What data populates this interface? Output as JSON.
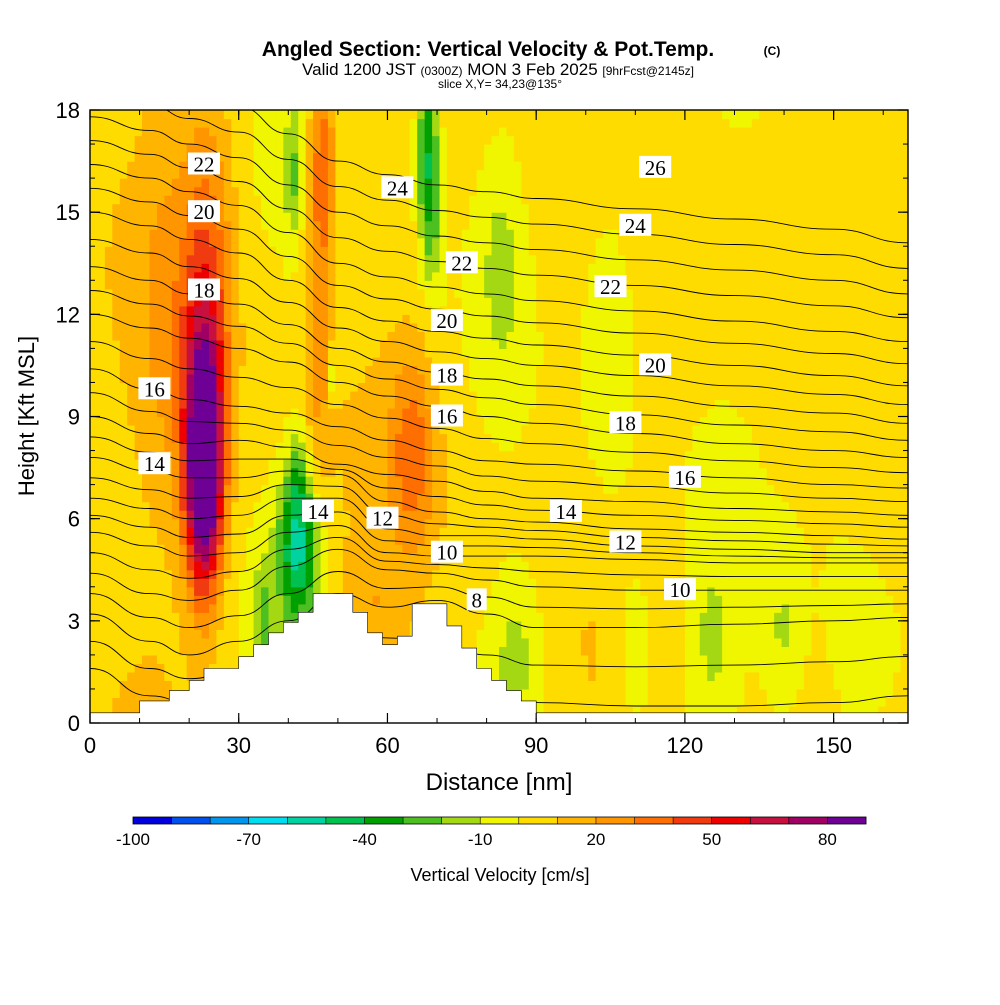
{
  "chart_data": {
    "type": "heatmap",
    "title": "Angled Section: Vertical Velocity & Pot.Temp.",
    "title_unit": "(C)",
    "subtitle_main_a": "Valid 1200 JST",
    "subtitle_small_a": "(0300Z)",
    "subtitle_main_b": "MON 3 Feb 2025",
    "subtitle_small_b": "[9hrFcst@2145z]",
    "slice_label": "slice X,Y= 34,23@135°",
    "xlabel": "Distance [nm]",
    "ylabel": "Height [Kft MSL]",
    "xlim": [
      0,
      165
    ],
    "ylim": [
      0,
      18
    ],
    "xticks": [
      0,
      30,
      60,
      90,
      120,
      150
    ],
    "yticks": [
      0,
      3,
      6,
      9,
      12,
      15,
      18
    ],
    "colorbar": {
      "label": "Vertical Velocity [cm/s]",
      "tick_labels": [
        "-100",
        "-70",
        "-40",
        "-10",
        "20",
        "50",
        "80"
      ],
      "tick_values": [
        -100,
        -70,
        -40,
        -10,
        20,
        50,
        80
      ],
      "range": [
        -100,
        90
      ],
      "colors": [
        "#0000dd",
        "#0050ee",
        "#0096ee",
        "#00dcf0",
        "#00d2a0",
        "#00c050",
        "#00a000",
        "#4cc020",
        "#a4d812",
        "#f0f500",
        "#ffdc00",
        "#ffb400",
        "#ff9600",
        "#ff6e00",
        "#f03a10",
        "#ee0000",
        "#c81040",
        "#a00064",
        "#6e0096"
      ]
    },
    "theta_labels": [
      {
        "text": "22",
        "x": 23,
        "y": 16.4
      },
      {
        "text": "20",
        "x": 23,
        "y": 15.0
      },
      {
        "text": "18",
        "x": 23,
        "y": 12.7
      },
      {
        "text": "16",
        "x": 13,
        "y": 9.8
      },
      {
        "text": "14",
        "x": 13,
        "y": 7.6
      },
      {
        "text": "24",
        "x": 62,
        "y": 15.7
      },
      {
        "text": "22",
        "x": 75,
        "y": 13.5
      },
      {
        "text": "20",
        "x": 72,
        "y": 11.8
      },
      {
        "text": "18",
        "x": 72,
        "y": 10.2
      },
      {
        "text": "16",
        "x": 72,
        "y": 9.0
      },
      {
        "text": "14",
        "x": 46,
        "y": 6.2
      },
      {
        "text": "12",
        "x": 59,
        "y": 6.0
      },
      {
        "text": "10",
        "x": 72,
        "y": 5.0
      },
      {
        "text": "8",
        "x": 78,
        "y": 3.6
      },
      {
        "text": "26",
        "x": 114,
        "y": 16.3
      },
      {
        "text": "24",
        "x": 110,
        "y": 14.6
      },
      {
        "text": "22",
        "x": 105,
        "y": 12.8
      },
      {
        "text": "20",
        "x": 114,
        "y": 10.5
      },
      {
        "text": "18",
        "x": 108,
        "y": 8.8
      },
      {
        "text": "16",
        "x": 120,
        "y": 7.2
      },
      {
        "text": "14",
        "x": 96,
        "y": 6.2
      },
      {
        "text": "12",
        "x": 108,
        "y": 5.3
      },
      {
        "text": "10",
        "x": 119,
        "y": 3.9
      }
    ],
    "theta_profile": [
      {
        "level": 2,
        "x": [
          0,
          12,
          20,
          30,
          40,
          50,
          60,
          70,
          80,
          90,
          110,
          130,
          150,
          165
        ],
        "y": [
          1.6,
          0.8,
          0.6,
          0.7,
          1.2,
          1.5,
          1.6,
          1.2,
          0.8,
          0.6,
          0.5,
          0.5,
          0.6,
          0.8
        ]
      },
      {
        "level": 4,
        "x": [
          0,
          12,
          20,
          30,
          40,
          50,
          60,
          70,
          80,
          90,
          110,
          130,
          150,
          165
        ],
        "y": [
          3.2,
          2.4,
          2.0,
          2.4,
          3.0,
          3.8,
          3.4,
          3.6,
          3.2,
          2.8,
          2.8,
          2.9,
          3.0,
          3.1
        ]
      },
      {
        "level": 6,
        "x": [
          0,
          12,
          20,
          30,
          40,
          50,
          60,
          70,
          80,
          90,
          110,
          130,
          150,
          165
        ],
        "y": [
          4.4,
          3.8,
          3.6,
          3.9,
          4.6,
          5.1,
          4.5,
          4.4,
          4.2,
          4.0,
          3.9,
          3.9,
          3.9,
          3.9
        ]
      },
      {
        "level": 8,
        "x": [
          0,
          12,
          20,
          30,
          40,
          50,
          60,
          70,
          80,
          90,
          110,
          130,
          150,
          165
        ],
        "y": [
          5.6,
          5.2,
          4.9,
          5.0,
          5.6,
          5.8,
          5.0,
          4.9,
          4.9,
          4.9,
          4.8,
          4.7,
          4.7,
          4.7
        ]
      },
      {
        "level": 10,
        "x": [
          0,
          12,
          20,
          30,
          40,
          50,
          60,
          70,
          80,
          90,
          110,
          130,
          150,
          165
        ],
        "y": [
          6.6,
          6.3,
          6.0,
          6.1,
          6.6,
          6.6,
          5.7,
          5.5,
          5.5,
          5.4,
          5.2,
          5.1,
          5.0,
          5.0
        ]
      },
      {
        "level": 12,
        "x": [
          0,
          12,
          20,
          30,
          40,
          50,
          60,
          70,
          80,
          90,
          110,
          130,
          150,
          165
        ],
        "y": [
          7.8,
          7.4,
          7.2,
          7.2,
          7.4,
          7.3,
          6.5,
          6.2,
          6.0,
          5.9,
          5.7,
          5.6,
          5.5,
          5.4
        ]
      },
      {
        "level": 14,
        "x": [
          0,
          12,
          20,
          30,
          40,
          50,
          60,
          70,
          80,
          90,
          110,
          130,
          150,
          165
        ],
        "y": [
          9.0,
          8.5,
          8.2,
          8.3,
          8.1,
          7.6,
          7.3,
          7.1,
          6.8,
          6.6,
          6.5,
          6.3,
          6.2,
          6.1
        ]
      },
      {
        "level": 16,
        "x": [
          0,
          12,
          20,
          30,
          40,
          50,
          60,
          70,
          80,
          90,
          110,
          130,
          150,
          165
        ],
        "y": [
          10.4,
          9.8,
          9.5,
          9.3,
          9.1,
          8.7,
          8.3,
          8.0,
          7.7,
          7.6,
          7.4,
          7.2,
          7.0,
          6.9
        ]
      },
      {
        "level": 18,
        "x": [
          0,
          12,
          20,
          30,
          40,
          50,
          60,
          70,
          80,
          90,
          110,
          130,
          150,
          165
        ],
        "y": [
          12.0,
          11.6,
          11.3,
          11.0,
          10.6,
          10.0,
          9.6,
          9.3,
          9.0,
          8.8,
          8.5,
          8.2,
          8.0,
          7.8
        ]
      },
      {
        "level": 20,
        "x": [
          0,
          12,
          20,
          30,
          40,
          50,
          60,
          70,
          80,
          90,
          110,
          130,
          150,
          165
        ],
        "y": [
          13.4,
          13.0,
          12.6,
          12.3,
          11.7,
          11.0,
          10.6,
          10.3,
          10.1,
          9.9,
          9.6,
          9.3,
          9.1,
          8.8
        ]
      },
      {
        "level": 22,
        "x": [
          0,
          12,
          20,
          30,
          40,
          50,
          60,
          70,
          80,
          90,
          110,
          130,
          150,
          165
        ],
        "y": [
          15.0,
          14.6,
          14.2,
          13.8,
          13.0,
          12.2,
          11.8,
          11.5,
          11.3,
          11.1,
          10.8,
          10.5,
          10.2,
          9.9
        ]
      },
      {
        "level": 24,
        "x": [
          0,
          12,
          20,
          30,
          40,
          50,
          60,
          70,
          80,
          90,
          110,
          130,
          150,
          165
        ],
        "y": [
          16.4,
          16.0,
          15.6,
          15.2,
          14.4,
          13.5,
          13.1,
          12.8,
          12.6,
          12.4,
          12.1,
          11.8,
          11.5,
          11.2
        ]
      },
      {
        "level": 26,
        "x": [
          0,
          12,
          20,
          30,
          40,
          50,
          60,
          70,
          80,
          90,
          110,
          130,
          150,
          165
        ],
        "y": [
          17.8,
          17.4,
          17.0,
          16.6,
          15.8,
          15.0,
          14.6,
          14.3,
          14.1,
          13.9,
          13.6,
          13.3,
          13.0,
          12.6
        ]
      }
    ],
    "terrain": {
      "x": [
        0,
        10,
        10,
        16,
        16,
        20,
        20,
        23,
        23,
        30,
        30,
        33,
        33,
        36,
        36,
        39,
        39,
        42,
        42,
        45,
        45,
        53,
        53,
        56,
        56,
        59,
        59,
        62,
        62,
        65,
        65,
        72,
        72,
        75,
        75,
        78,
        78,
        81,
        81,
        84,
        84,
        87,
        87,
        90,
        90,
        165
      ],
      "y": [
        0.3,
        0.3,
        0.65,
        0.65,
        0.95,
        0.95,
        1.25,
        1.25,
        1.6,
        1.6,
        1.95,
        1.95,
        2.3,
        2.3,
        2.65,
        2.65,
        2.95,
        2.95,
        3.25,
        3.25,
        3.8,
        3.8,
        3.25,
        3.25,
        2.65,
        2.65,
        2.3,
        2.3,
        2.55,
        2.55,
        3.5,
        3.5,
        2.85,
        2.85,
        2.2,
        2.2,
        1.6,
        1.6,
        1.25,
        1.25,
        0.95,
        0.95,
        0.65,
        0.65,
        0.3,
        0.3
      ]
    },
    "velocity_features": [
      {
        "x": 23,
        "y": 7.2,
        "sx": 2.6,
        "sy": 2.4,
        "v": 95
      },
      {
        "x": 23,
        "y": 10.0,
        "sx": 3.2,
        "sy": 3.0,
        "v": 35
      },
      {
        "x": 24,
        "y": 14.5,
        "sx": 4.0,
        "sy": 3.8,
        "v": 22
      },
      {
        "x": 15,
        "y": 12.0,
        "sx": 4.0,
        "sy": 4.5,
        "v": 12
      },
      {
        "x": 47,
        "y": 16.5,
        "sx": 1.6,
        "sy": 2.0,
        "v": 28
      },
      {
        "x": 46,
        "y": 12.0,
        "sx": 2.0,
        "sy": 3.5,
        "v": 20
      },
      {
        "x": 41,
        "y": 16.2,
        "sx": 1.3,
        "sy": 1.5,
        "v": -22
      },
      {
        "x": 42,
        "y": 5.0,
        "sx": 3.0,
        "sy": 1.6,
        "v": -52
      },
      {
        "x": 42,
        "y": 7.2,
        "sx": 1.5,
        "sy": 1.2,
        "v": -22
      },
      {
        "x": 35,
        "y": 3.0,
        "sx": 1.5,
        "sy": 1.2,
        "v": -22
      },
      {
        "x": 49,
        "y": 10.2,
        "sx": 0.7,
        "sy": 0.6,
        "v": -20
      },
      {
        "x": 68,
        "y": 17.0,
        "sx": 1.6,
        "sy": 1.8,
        "v": -42
      },
      {
        "x": 69,
        "y": 14.5,
        "sx": 1.5,
        "sy": 1.5,
        "v": -18
      },
      {
        "x": 65,
        "y": 8.0,
        "sx": 3.2,
        "sy": 2.0,
        "v": 28
      },
      {
        "x": 57,
        "y": 3.2,
        "sx": 4.0,
        "sy": 1.6,
        "v": 12
      },
      {
        "x": 83,
        "y": 13.5,
        "sx": 3.0,
        "sy": 2.4,
        "v": -14
      },
      {
        "x": 105,
        "y": 11.5,
        "sx": 4.0,
        "sy": 4.0,
        "v": -15
      },
      {
        "x": 86,
        "y": 2.0,
        "sx": 4.0,
        "sy": 1.8,
        "v": -16
      },
      {
        "x": 110,
        "y": 2.0,
        "sx": 3.0,
        "sy": 2.0,
        "v": -16
      },
      {
        "x": 125,
        "y": 2.0,
        "sx": 4.0,
        "sy": 2.5,
        "v": -15
      },
      {
        "x": 140,
        "y": 2.5,
        "sx": 3.0,
        "sy": 1.8,
        "v": -14
      },
      {
        "x": 155,
        "y": 1.8,
        "sx": 5.0,
        "sy": 2.5,
        "v": -12
      },
      {
        "x": 150,
        "y": 12.0,
        "sx": 5.0,
        "sy": 5.0,
        "v": -8
      }
    ],
    "velocity_background": 5,
    "grid": false,
    "legend": "bottom"
  }
}
